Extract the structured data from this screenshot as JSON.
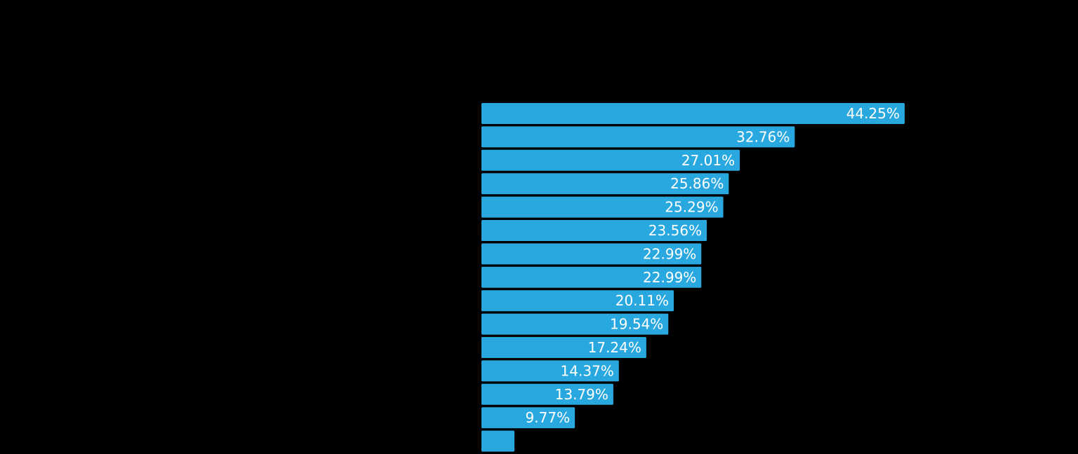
{
  "chart_data": {
    "type": "bar",
    "orientation": "horizontal",
    "bar_color": "#29a8e0",
    "background_color": "#000000",
    "label_color": "#ffffff",
    "grid": false,
    "legend": "none",
    "xlim": [
      0,
      44.25
    ],
    "values": [
      44.25,
      32.76,
      27.01,
      25.86,
      25.29,
      23.56,
      22.99,
      22.99,
      20.11,
      19.54,
      17.24,
      14.37,
      13.79,
      9.77,
      3.45
    ],
    "labels": [
      "44.25%",
      "32.76%",
      "27.01%",
      "25.86%",
      "25.29%",
      "23.56%",
      "22.99%",
      "22.99%",
      "20.11%",
      "19.54%",
      "17.24%",
      "14.37%",
      "13.79%",
      "9.77%",
      ""
    ]
  }
}
